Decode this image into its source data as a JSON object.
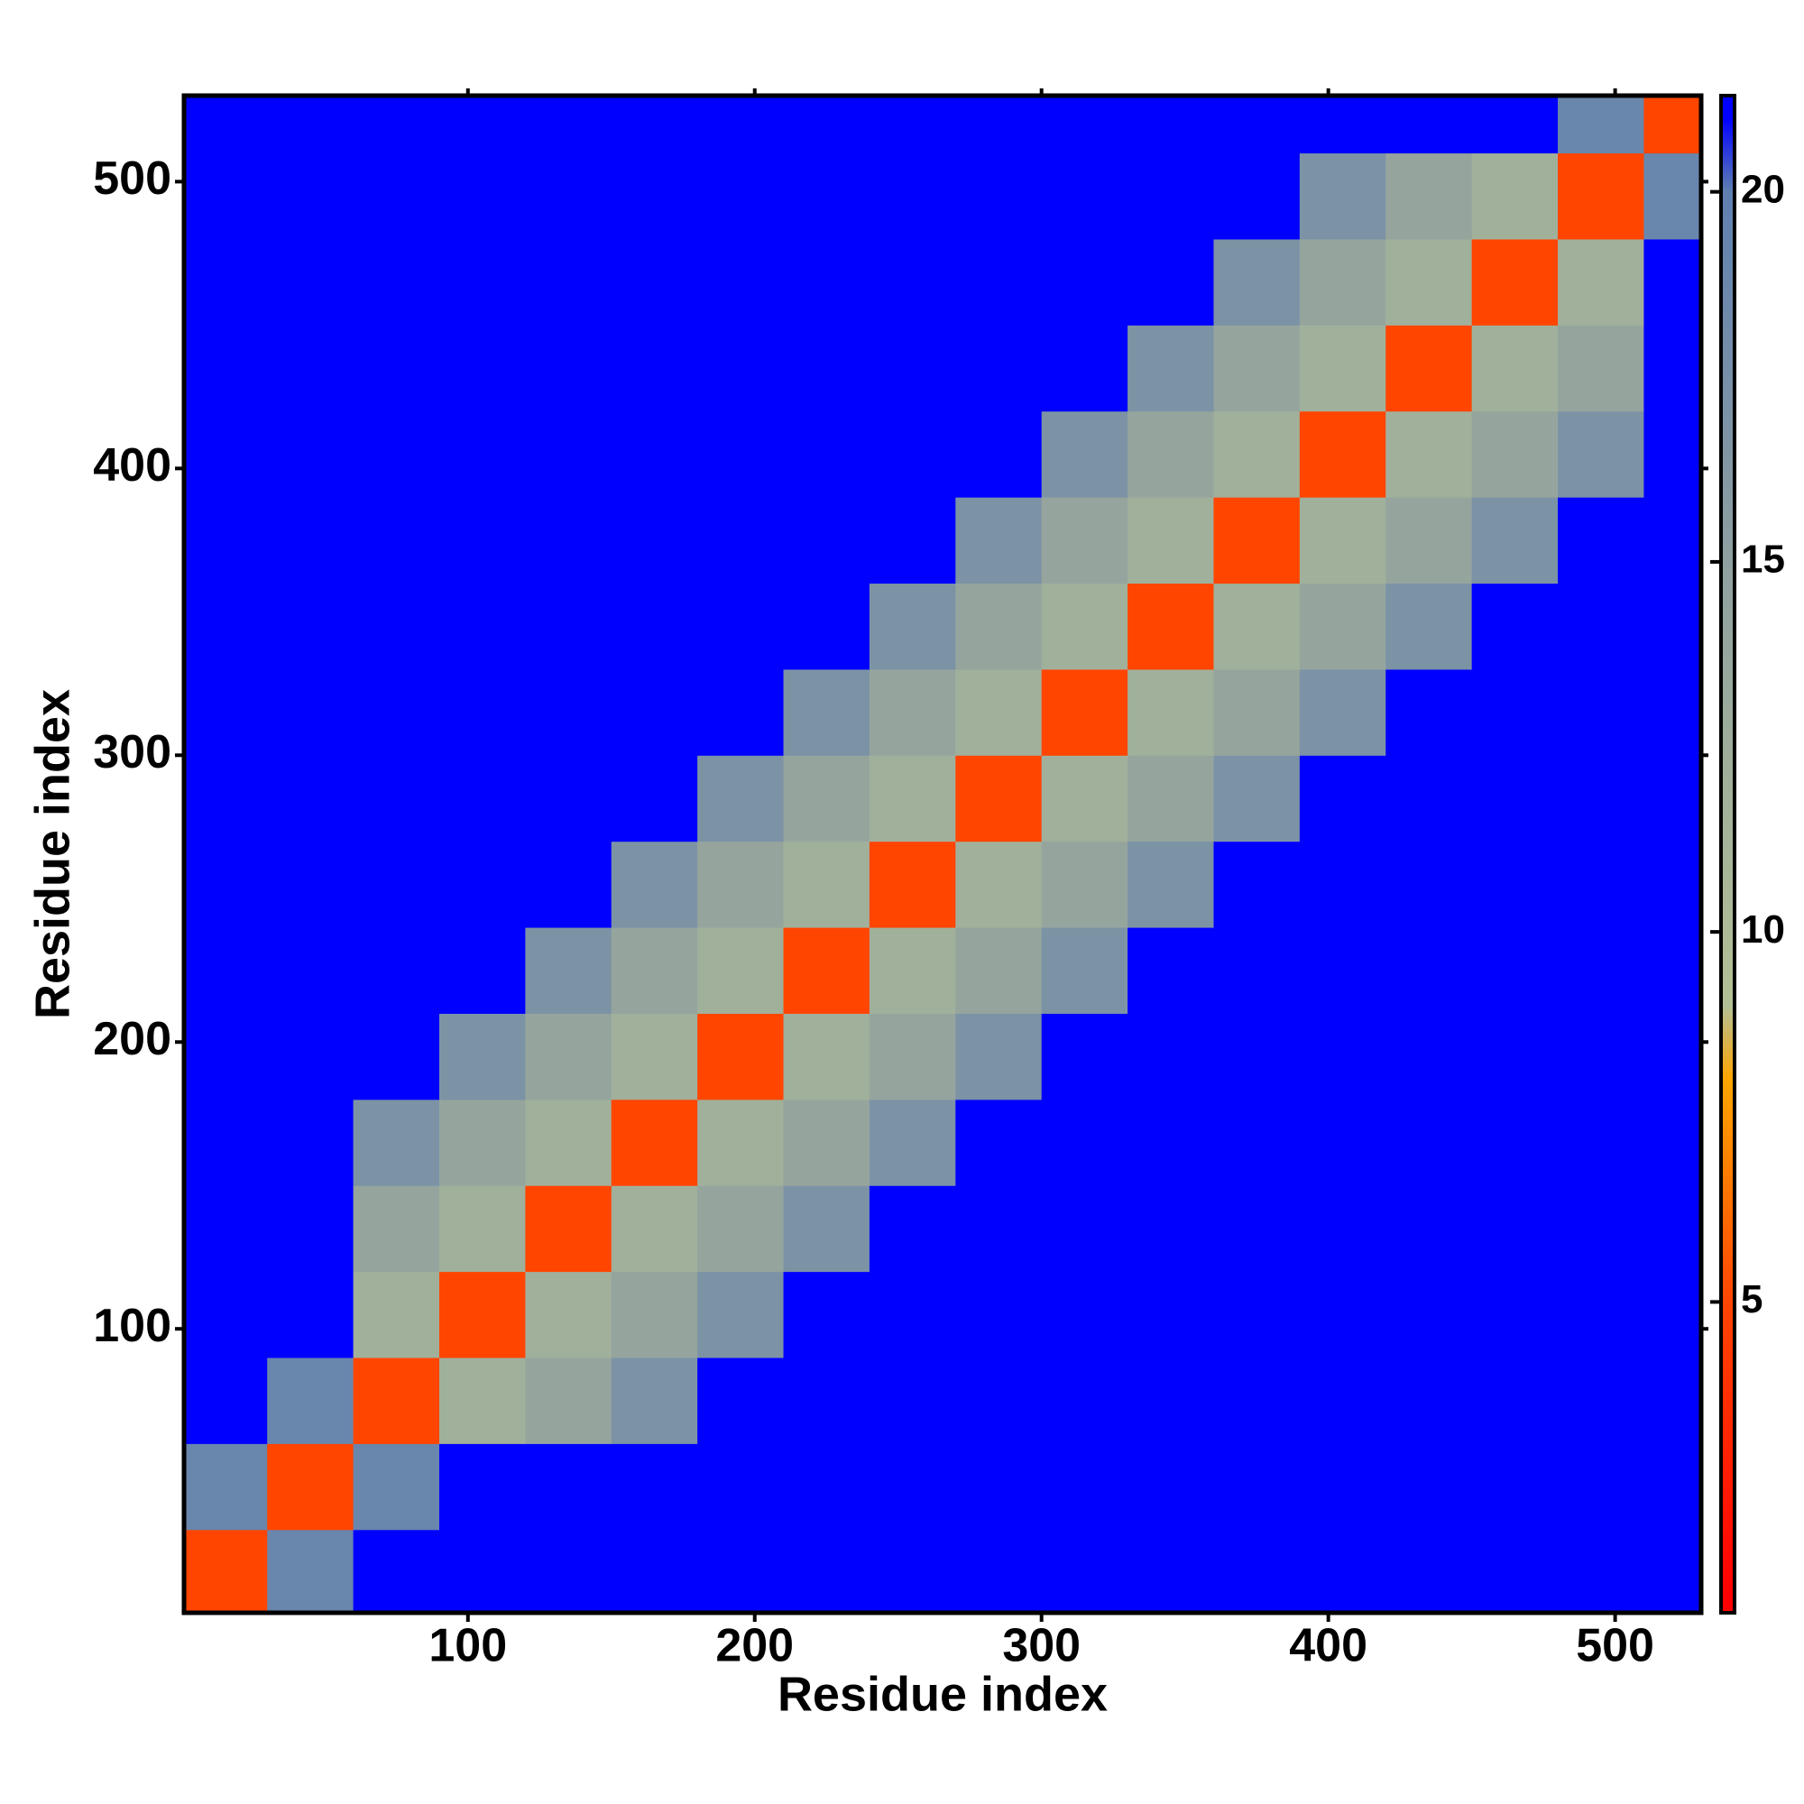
{
  "chart_data": {
    "type": "heatmap",
    "x_label": "Residue index",
    "y_label": "Residue index",
    "x": [
      15,
      45,
      75,
      105,
      135,
      165,
      195,
      225,
      255,
      285,
      315,
      345,
      375,
      405,
      435,
      465,
      495,
      525
    ],
    "y": [
      15,
      45,
      75,
      105,
      135,
      165,
      195,
      225,
      255,
      285,
      315,
      345,
      375,
      405,
      435,
      465,
      495,
      525
    ],
    "z": [
      [
        5,
        19,
        21,
        21,
        21,
        21,
        21,
        21,
        21,
        21,
        21,
        21,
        21,
        21,
        21,
        21,
        21,
        21
      ],
      [
        19,
        5,
        19,
        21,
        21,
        21,
        21,
        21,
        21,
        21,
        21,
        21,
        21,
        21,
        21,
        21,
        21,
        21
      ],
      [
        21,
        19,
        5,
        12,
        14,
        17,
        21,
        21,
        21,
        21,
        21,
        21,
        21,
        21,
        21,
        21,
        21,
        21
      ],
      [
        21,
        21,
        12,
        5,
        12,
        14,
        17,
        21,
        21,
        21,
        21,
        21,
        21,
        21,
        21,
        21,
        21,
        21
      ],
      [
        21,
        21,
        14,
        12,
        5,
        12,
        14,
        17,
        21,
        21,
        21,
        21,
        21,
        21,
        21,
        21,
        21,
        21
      ],
      [
        21,
        21,
        17,
        14,
        12,
        5,
        12,
        14,
        17,
        21,
        21,
        21,
        21,
        21,
        21,
        21,
        21,
        21
      ],
      [
        21,
        21,
        21,
        17,
        14,
        12,
        5,
        12,
        14,
        17,
        21,
        21,
        21,
        21,
        21,
        21,
        21,
        21
      ],
      [
        21,
        21,
        21,
        21,
        17,
        14,
        12,
        5,
        12,
        14,
        17,
        21,
        21,
        21,
        21,
        21,
        21,
        21
      ],
      [
        21,
        21,
        21,
        21,
        21,
        17,
        14,
        12,
        5,
        12,
        14,
        17,
        21,
        21,
        21,
        21,
        21,
        21
      ],
      [
        21,
        21,
        21,
        21,
        21,
        21,
        17,
        14,
        12,
        5,
        12,
        14,
        17,
        21,
        21,
        21,
        21,
        21
      ],
      [
        21,
        21,
        21,
        21,
        21,
        21,
        21,
        17,
        14,
        12,
        5,
        12,
        14,
        17,
        21,
        21,
        21,
        21
      ],
      [
        21,
        21,
        21,
        21,
        21,
        21,
        21,
        21,
        17,
        14,
        12,
        5,
        12,
        14,
        17,
        21,
        21,
        21
      ],
      [
        21,
        21,
        21,
        21,
        21,
        21,
        21,
        21,
        21,
        17,
        14,
        12,
        5,
        12,
        14,
        17,
        21,
        21
      ],
      [
        21,
        21,
        21,
        21,
        21,
        21,
        21,
        21,
        21,
        21,
        17,
        14,
        12,
        5,
        12,
        14,
        17,
        21
      ],
      [
        21,
        21,
        21,
        21,
        21,
        21,
        21,
        21,
        21,
        21,
        21,
        17,
        14,
        12,
        5,
        12,
        14,
        21
      ],
      [
        21,
        21,
        21,
        21,
        21,
        21,
        21,
        21,
        21,
        21,
        21,
        21,
        17,
        14,
        12,
        5,
        12,
        21
      ],
      [
        21,
        21,
        21,
        21,
        21,
        21,
        21,
        21,
        21,
        21,
        21,
        21,
        21,
        17,
        14,
        12,
        5,
        19
      ],
      [
        21,
        21,
        21,
        21,
        21,
        21,
        21,
        21,
        21,
        21,
        21,
        21,
        21,
        21,
        21,
        21,
        19,
        5
      ]
    ],
    "xlim": [
      1,
      530
    ],
    "ylim": [
      1,
      530
    ],
    "xticks": [
      100,
      200,
      300,
      400,
      500
    ],
    "yticks": [
      100,
      200,
      300,
      400,
      500
    ],
    "zlim": [
      0.8,
      21.3
    ],
    "zticks": [
      5,
      10,
      15,
      20
    ],
    "colorscale": [
      [
        1,
        "#ff0000"
      ],
      [
        5,
        "#ff4500"
      ],
      [
        8,
        "#ffa500"
      ],
      [
        9,
        "#b3c095"
      ],
      [
        15,
        "#8fa0a0"
      ],
      [
        20,
        "#5f7fb0"
      ],
      [
        21,
        "#0000ff"
      ]
    ]
  }
}
